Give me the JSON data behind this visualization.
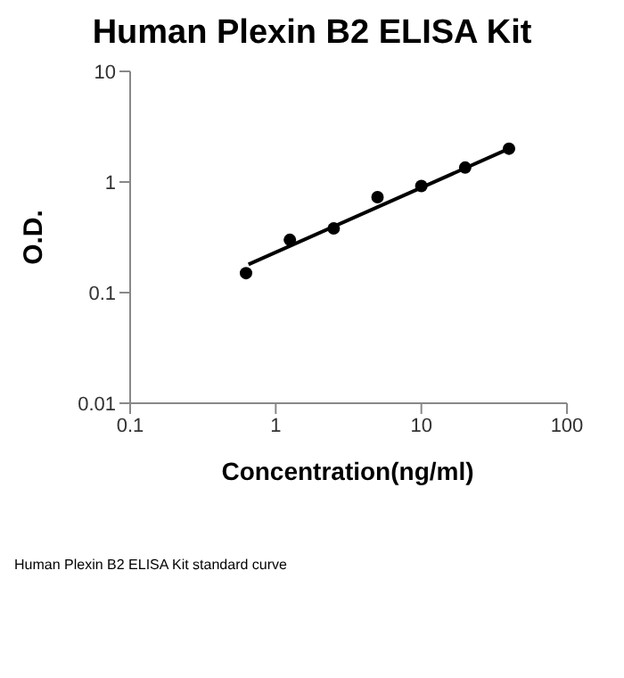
{
  "chart_data": {
    "type": "scatter",
    "title": "Human Plexin B2 ELISA Kit",
    "xlabel": "Concentration(ng/ml)",
    "ylabel": "O.D.",
    "annotations": [
      "Human Plexin B2 ELISA Kit standard curve"
    ],
    "log": "xy",
    "xlim": [
      0.1,
      100
    ],
    "xticks": [
      0.1,
      1,
      10,
      100
    ],
    "ylim": [
      0.01,
      10
    ],
    "yticks": [
      0.01,
      0.1,
      1,
      10
    ],
    "grid": false,
    "series": [
      {
        "type": "scatter",
        "color": "#000000",
        "marker": "circle",
        "x": [
          0.625,
          1.25,
          2.5,
          5,
          10,
          20,
          40
        ],
        "values": [
          0.15,
          0.3,
          0.38,
          0.73,
          0.92,
          1.35,
          2.0
        ]
      },
      {
        "type": "line",
        "color": "#000000",
        "marker": "none",
        "x": [
          0.65,
          40
        ],
        "values": [
          0.18,
          2.0
        ]
      }
    ]
  }
}
